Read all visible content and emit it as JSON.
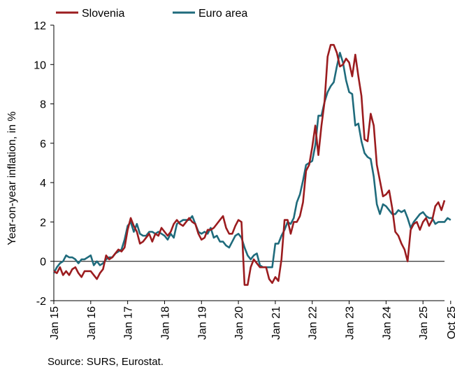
{
  "chart_data": {
    "type": "line",
    "title": "",
    "ylabel": "Year-on-year inflation, in %",
    "xlabel": "",
    "ylim": [
      -2,
      12
    ],
    "yticks": [
      -2,
      0,
      2,
      4,
      6,
      8,
      10,
      12
    ],
    "x_tick_labels": [
      "Jan 15",
      "Jan 16",
      "Jan 17",
      "Jan 18",
      "Jan 19",
      "Jan 20",
      "Jan 21",
      "Jan 22",
      "Jan 23",
      "Jan 24",
      "Jan 25",
      "Oct 25"
    ],
    "x_tick_months": [
      0,
      12,
      24,
      36,
      48,
      60,
      72,
      84,
      96,
      108,
      120,
      129
    ],
    "x_start": "2015-01",
    "x_end": "2025-10",
    "grid": false,
    "zero_line": true,
    "legend_position": "top",
    "series": [
      {
        "name": "Slovenia",
        "color": "#9b1c1f",
        "values": [
          -0.5,
          -0.6,
          -0.3,
          -0.7,
          -0.5,
          -0.7,
          -0.4,
          -0.3,
          -0.6,
          -0.8,
          -0.5,
          -0.5,
          -0.5,
          -0.7,
          -0.9,
          -0.6,
          -0.4,
          0.3,
          0.1,
          0.2,
          0.4,
          0.6,
          0.5,
          0.7,
          1.6,
          2.2,
          1.8,
          1.5,
          0.9,
          1.0,
          1.2,
          1.4,
          1.0,
          1.4,
          1.3,
          1.7,
          1.5,
          1.3,
          1.5,
          1.9,
          2.1,
          1.9,
          1.8,
          2.0,
          2.2,
          2.0,
          1.9,
          1.4,
          1.1,
          1.2,
          1.6,
          1.6,
          1.7,
          1.9,
          2.1,
          2.3,
          1.7,
          1.4,
          1.4,
          1.8,
          2.1,
          2.0,
          -1.2,
          -1.2,
          -0.3,
          0.1,
          -0.1,
          -0.3,
          -0.3,
          -0.3,
          -0.9,
          -1.1,
          -0.8,
          -1.0,
          0.1,
          2.1,
          2.1,
          1.4,
          2.0,
          2.0,
          2.3,
          3.0,
          4.6,
          4.9,
          5.8,
          6.9,
          5.4,
          6.9,
          8.1,
          10.4,
          11.0,
          11.0,
          10.6,
          9.9,
          10.0,
          10.3,
          10.1,
          9.4,
          10.5,
          9.4,
          8.4,
          6.2,
          6.1,
          7.5,
          6.9,
          4.9,
          4.1,
          3.3,
          3.4,
          3.6,
          2.7,
          1.5,
          1.3,
          0.9,
          0.6,
          0.0,
          1.6,
          1.9,
          2.0,
          1.6,
          2.0,
          2.2,
          1.8,
          2.1,
          2.8,
          3.0,
          2.6,
          3.1
        ]
      },
      {
        "name": "Euro area",
        "color": "#1f6b7c",
        "values": [
          -0.6,
          -0.3,
          -0.1,
          0.0,
          0.3,
          0.2,
          0.2,
          0.1,
          -0.1,
          0.1,
          0.1,
          0.2,
          0.3,
          -0.2,
          0.0,
          -0.2,
          -0.1,
          0.1,
          0.2,
          0.2,
          0.4,
          0.5,
          0.6,
          1.1,
          1.8,
          2.0,
          1.5,
          1.9,
          1.4,
          1.3,
          1.3,
          1.5,
          1.5,
          1.4,
          1.5,
          1.4,
          1.3,
          1.1,
          1.4,
          1.2,
          1.9,
          2.0,
          2.1,
          2.1,
          2.1,
          2.3,
          1.9,
          1.5,
          1.4,
          1.5,
          1.4,
          1.7,
          1.2,
          1.3,
          1.0,
          1.0,
          0.8,
          0.7,
          1.0,
          1.3,
          1.4,
          1.2,
          0.7,
          0.3,
          0.1,
          0.3,
          0.4,
          -0.2,
          -0.3,
          -0.3,
          -0.3,
          -0.3,
          0.9,
          0.9,
          1.3,
          1.6,
          2.0,
          1.9,
          2.2,
          3.0,
          3.4,
          4.1,
          4.9,
          5.0,
          5.1,
          5.9,
          7.4,
          7.4,
          8.1,
          8.6,
          8.9,
          9.1,
          9.9,
          10.6,
          10.1,
          9.2,
          8.6,
          8.5,
          6.9,
          7.0,
          6.1,
          5.5,
          5.3,
          5.2,
          4.3,
          2.9,
          2.4,
          2.9,
          2.8,
          2.6,
          2.4,
          2.4,
          2.6,
          2.5,
          2.6,
          2.2,
          1.7,
          2.0,
          2.2,
          2.4,
          2.5,
          2.3,
          2.2,
          2.2,
          1.9,
          2.0,
          2.0,
          2.0,
          2.2,
          2.1
        ]
      }
    ]
  },
  "source": "Source: SURS, Eurostat."
}
